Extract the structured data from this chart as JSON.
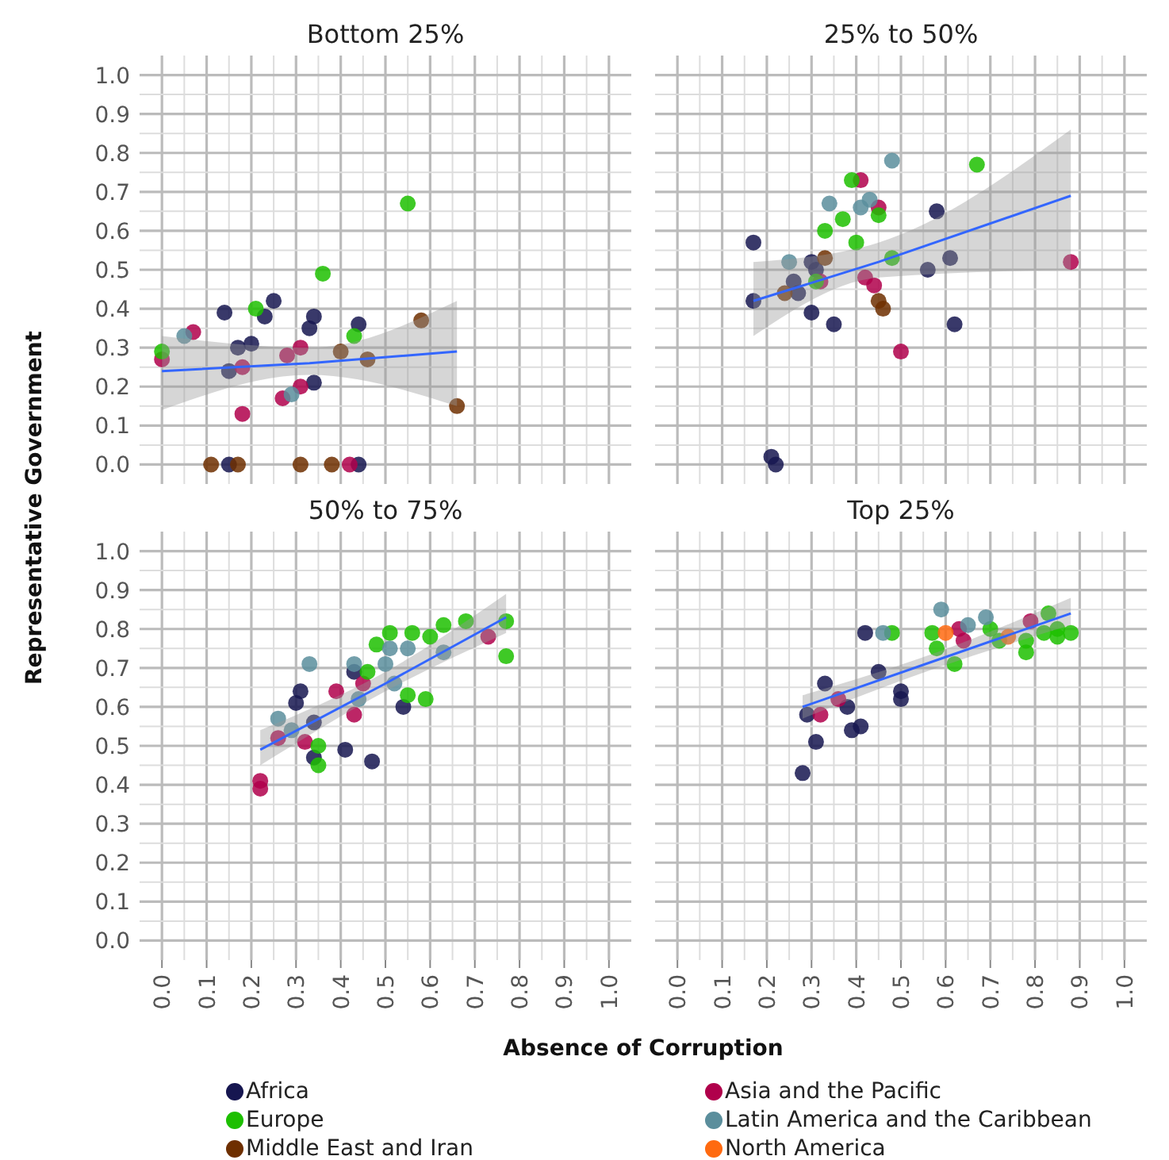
{
  "chart_data": [
    {
      "type": "scatter",
      "title": "Bottom 25%",
      "tick_labels": "y",
      "legend": "bottom",
      "grid": true,
      "marker": "circle",
      "xlim": [
        -0.05,
        1.05
      ],
      "ylim": [
        -0.05,
        1.05
      ],
      "xticks": [
        {
          "value": 0,
          "label": null
        },
        {
          "value": 0.1,
          "label": null
        },
        {
          "value": 0.2,
          "label": null
        },
        {
          "value": 0.3,
          "label": null
        },
        {
          "value": 0.4,
          "label": null
        },
        {
          "value": 0.5,
          "label": null
        },
        {
          "value": 0.6,
          "label": null
        },
        {
          "value": 0.7,
          "label": null
        },
        {
          "value": 0.8,
          "label": null
        },
        {
          "value": 0.9,
          "label": null
        },
        {
          "value": 1,
          "label": null
        }
      ],
      "yticks": [
        {
          "value": 0,
          "label": "0.0"
        },
        0.1,
        0.2,
        0.3,
        0.4,
        0.5,
        0.6,
        0.7,
        0.8,
        0.9,
        {
          "value": 1,
          "label": "1.0"
        }
      ],
      "series": [
        {
          "name": "Africa",
          "color": "#161650",
          "x": [
            0.14,
            0.25,
            0.23,
            0.2,
            0.17,
            0.34,
            0.33,
            0.44,
            0.34,
            0.15,
            0.15,
            0.44
          ],
          "values": [
            0.39,
            0.42,
            0.38,
            0.31,
            0.3,
            0.38,
            0.35,
            0.36,
            0.21,
            0.24,
            0,
            0
          ]
        },
        {
          "name": "Asia and the Pacific",
          "color": "#b0004b",
          "x": [
            0,
            0.07,
            0.18,
            0.18,
            0.28,
            0.31,
            0.31,
            0.27,
            0.42
          ],
          "values": [
            0.27,
            0.34,
            0.25,
            0.13,
            0.28,
            0.3,
            0.2,
            0.17,
            0
          ]
        },
        {
          "name": "Europe",
          "color": "#1dbf00",
          "x": [
            0.55,
            0.36,
            0.21,
            0,
            0.43
          ],
          "values": [
            0.67,
            0.49,
            0.4,
            0.29,
            0.33
          ]
        },
        {
          "name": "Latin America and the Caribbean",
          "color": "#5b8e9c",
          "x": [
            0.05,
            0.29
          ],
          "values": [
            0.33,
            0.18
          ]
        },
        {
          "name": "Middle East and Iran",
          "color": "#6e2f00",
          "x": [
            0.58,
            0.4,
            0.46,
            0.66,
            0.11,
            0.17,
            0.31,
            0.38
          ],
          "values": [
            0.37,
            0.29,
            0.27,
            0.15,
            0,
            0,
            0,
            0
          ]
        },
        {
          "type": "line",
          "marker": "none",
          "color": "#3366ff",
          "x": [
            0,
            0.33,
            0.66
          ],
          "values": [
            0.24,
            0.26,
            0.29
          ],
          "lower": [
            0.14,
            0.23,
            0.15
          ],
          "upper": [
            0.33,
            0.3,
            0.42
          ]
        }
      ]
    },
    {
      "type": "scatter",
      "title": "25% to 50%",
      "tick_labels": false,
      "grid": true,
      "marker": "circle",
      "xlim": [
        -0.05,
        1.05
      ],
      "ylim": [
        -0.05,
        1.05
      ],
      "xticks": [
        {
          "value": 0,
          "label": null
        },
        {
          "value": 0.1,
          "label": null
        },
        {
          "value": 0.2,
          "label": null
        },
        {
          "value": 0.3,
          "label": null
        },
        {
          "value": 0.4,
          "label": null
        },
        {
          "value": 0.5,
          "label": null
        },
        {
          "value": 0.6,
          "label": null
        },
        {
          "value": 0.7,
          "label": null
        },
        {
          "value": 0.8,
          "label": null
        },
        {
          "value": 0.9,
          "label": null
        },
        {
          "value": 1,
          "label": null
        }
      ],
      "yticks": [
        {
          "value": 0,
          "label": null
        },
        {
          "value": 0.1,
          "label": null
        },
        {
          "value": 0.2,
          "label": null
        },
        {
          "value": 0.3,
          "label": null
        },
        {
          "value": 0.4,
          "label": null
        },
        {
          "value": 0.5,
          "label": null
        },
        {
          "value": 0.6,
          "label": null
        },
        {
          "value": 0.7,
          "label": null
        },
        {
          "value": 0.8,
          "label": null
        },
        {
          "value": 0.9,
          "label": null
        },
        {
          "value": 1,
          "label": null
        }
      ],
      "series": [
        {
          "color": "#161650",
          "x": [
            0.17,
            0.17,
            0.3,
            0.3,
            0.35,
            0.26,
            0.27,
            0.31,
            0.58,
            0.61,
            0.56,
            0.62,
            0.21,
            0.22
          ],
          "values": [
            0.57,
            0.42,
            0.52,
            0.39,
            0.36,
            0.47,
            0.44,
            0.5,
            0.65,
            0.53,
            0.5,
            0.36,
            0.02,
            0
          ]
        },
        {
          "color": "#b0004b",
          "x": [
            0.41,
            0.45,
            0.32,
            0.42,
            0.44,
            0.5,
            0.88
          ],
          "values": [
            0.73,
            0.66,
            0.47,
            0.48,
            0.46,
            0.29,
            0.52
          ]
        },
        {
          "color": "#1dbf00",
          "x": [
            0.39,
            0.67,
            0.37,
            0.33,
            0.4,
            0.45,
            0.48,
            0.31
          ],
          "values": [
            0.73,
            0.77,
            0.63,
            0.6,
            0.57,
            0.64,
            0.53,
            0.47
          ]
        },
        {
          "color": "#5b8e9c",
          "x": [
            0.48,
            0.34,
            0.43,
            0.41,
            0.25
          ],
          "values": [
            0.78,
            0.67,
            0.68,
            0.66,
            0.52
          ]
        },
        {
          "color": "#6e2f00",
          "x": [
            0.33,
            0.24,
            0.45,
            0.46
          ],
          "values": [
            0.53,
            0.44,
            0.42,
            0.4
          ]
        },
        {
          "type": "line",
          "marker": "none",
          "color": "#3366ff",
          "x": [
            0.17,
            0.45,
            0.88
          ],
          "values": [
            0.42,
            0.52,
            0.69
          ],
          "lower": [
            0.33,
            0.48,
            0.5
          ],
          "upper": [
            0.52,
            0.57,
            0.86
          ]
        }
      ]
    },
    {
      "type": "scatter",
      "title": "50% to 75%",
      "xlabel": "Absence of Corruption",
      "ylabel": "Representative Government",
      "grid": true,
      "marker": "circle",
      "xlim": [
        -0.05,
        1.05
      ],
      "ylim": [
        -0.05,
        1.05
      ],
      "xticks": [
        {
          "value": 0,
          "label": "0.0"
        },
        0.1,
        0.2,
        0.3,
        0.4,
        0.5,
        0.6,
        0.7,
        0.8,
        0.9,
        {
          "value": 1,
          "label": "1.0"
        }
      ],
      "yticks": [
        {
          "value": 0,
          "label": "0.0"
        },
        0.1,
        0.2,
        0.3,
        0.4,
        0.5,
        0.6,
        0.7,
        0.8,
        0.9,
        {
          "value": 1,
          "label": "1.0"
        }
      ],
      "series": [
        {
          "color": "#161650",
          "x": [
            0.31,
            0.3,
            0.34,
            0.43,
            0.54,
            0.34,
            0.41,
            0.47
          ],
          "values": [
            0.64,
            0.61,
            0.56,
            0.69,
            0.6,
            0.47,
            0.49,
            0.46
          ]
        },
        {
          "color": "#b0004b",
          "x": [
            0.73,
            0.39,
            0.45,
            0.43,
            0.26,
            0.32,
            0.22,
            0.22
          ],
          "values": [
            0.78,
            0.64,
            0.66,
            0.58,
            0.52,
            0.51,
            0.41,
            0.39
          ]
        },
        {
          "color": "#1dbf00",
          "x": [
            0.77,
            0.77,
            0.68,
            0.63,
            0.6,
            0.56,
            0.51,
            0.48,
            0.46,
            0.55,
            0.59,
            0.35,
            0.35
          ],
          "values": [
            0.82,
            0.73,
            0.82,
            0.81,
            0.78,
            0.79,
            0.79,
            0.76,
            0.69,
            0.63,
            0.62,
            0.5,
            0.45
          ]
        },
        {
          "color": "#5b8e9c",
          "x": [
            0.33,
            0.26,
            0.29,
            0.51,
            0.55,
            0.5,
            0.43,
            0.44,
            0.52,
            0.63
          ],
          "values": [
            0.71,
            0.57,
            0.54,
            0.75,
            0.75,
            0.71,
            0.71,
            0.62,
            0.66,
            0.74
          ]
        },
        {
          "type": "line",
          "marker": "none",
          "color": "#3366ff",
          "x": [
            0.22,
            0.5,
            0.77
          ],
          "values": [
            0.49,
            0.66,
            0.83
          ],
          "lower": [
            0.45,
            0.64,
            0.79
          ],
          "upper": [
            0.54,
            0.69,
            0.89
          ]
        }
      ]
    },
    {
      "type": "scatter",
      "title": "Top 25%",
      "tick_labels": "x",
      "legend": "bottom",
      "grid": true,
      "marker": "circle",
      "xlim": [
        -0.05,
        1.05
      ],
      "ylim": [
        -0.05,
        1.05
      ],
      "xticks": [
        {
          "value": 0,
          "label": "0.0"
        },
        0.1,
        0.2,
        0.3,
        0.4,
        0.5,
        0.6,
        0.7,
        0.8,
        0.9,
        {
          "value": 1,
          "label": "1.0"
        }
      ],
      "yticks": [
        {
          "value": 0,
          "label": null
        },
        {
          "value": 0.1,
          "label": null
        },
        {
          "value": 0.2,
          "label": null
        },
        {
          "value": 0.3,
          "label": null
        },
        {
          "value": 0.4,
          "label": null
        },
        {
          "value": 0.5,
          "label": null
        },
        {
          "value": 0.6,
          "label": null
        },
        {
          "value": 0.7,
          "label": null
        },
        {
          "value": 0.8,
          "label": null
        },
        {
          "value": 0.9,
          "label": null
        },
        {
          "value": 1,
          "label": null
        }
      ],
      "series": [
        {
          "color": "#161650",
          "x": [
            0.28,
            0.31,
            0.33,
            0.38,
            0.29,
            0.39,
            0.41,
            0.42,
            0.45,
            0.5,
            0.5
          ],
          "values": [
            0.43,
            0.51,
            0.66,
            0.6,
            0.58,
            0.54,
            0.55,
            0.79,
            0.69,
            0.64,
            0.62
          ]
        },
        {
          "color": "#b0004b",
          "x": [
            0.32,
            0.36,
            0.63,
            0.64,
            0.79
          ],
          "values": [
            0.58,
            0.62,
            0.8,
            0.77,
            0.82
          ]
        },
        {
          "color": "#1dbf00",
          "x": [
            0.48,
            0.57,
            0.58,
            0.62,
            0.7,
            0.72,
            0.78,
            0.78,
            0.83,
            0.82,
            0.85,
            0.88,
            0.85
          ],
          "values": [
            0.79,
            0.79,
            0.75,
            0.71,
            0.8,
            0.77,
            0.77,
            0.74,
            0.84,
            0.79,
            0.8,
            0.79,
            0.78
          ]
        },
        {
          "color": "#5b8e9c",
          "x": [
            0.46,
            0.59,
            0.65,
            0.69
          ],
          "values": [
            0.79,
            0.85,
            0.81,
            0.83
          ]
        },
        {
          "name": "North America",
          "color": "#ff6a10",
          "x": [
            0.6,
            0.74
          ],
          "values": [
            0.79,
            0.78
          ]
        },
        {
          "type": "line",
          "marker": "none",
          "color": "#3366ff",
          "x": [
            0.28,
            0.58,
            0.88
          ],
          "values": [
            0.6,
            0.72,
            0.84
          ],
          "lower": [
            0.57,
            0.7,
            0.81
          ],
          "upper": [
            0.63,
            0.74,
            0.88
          ]
        }
      ]
    }
  ]
}
